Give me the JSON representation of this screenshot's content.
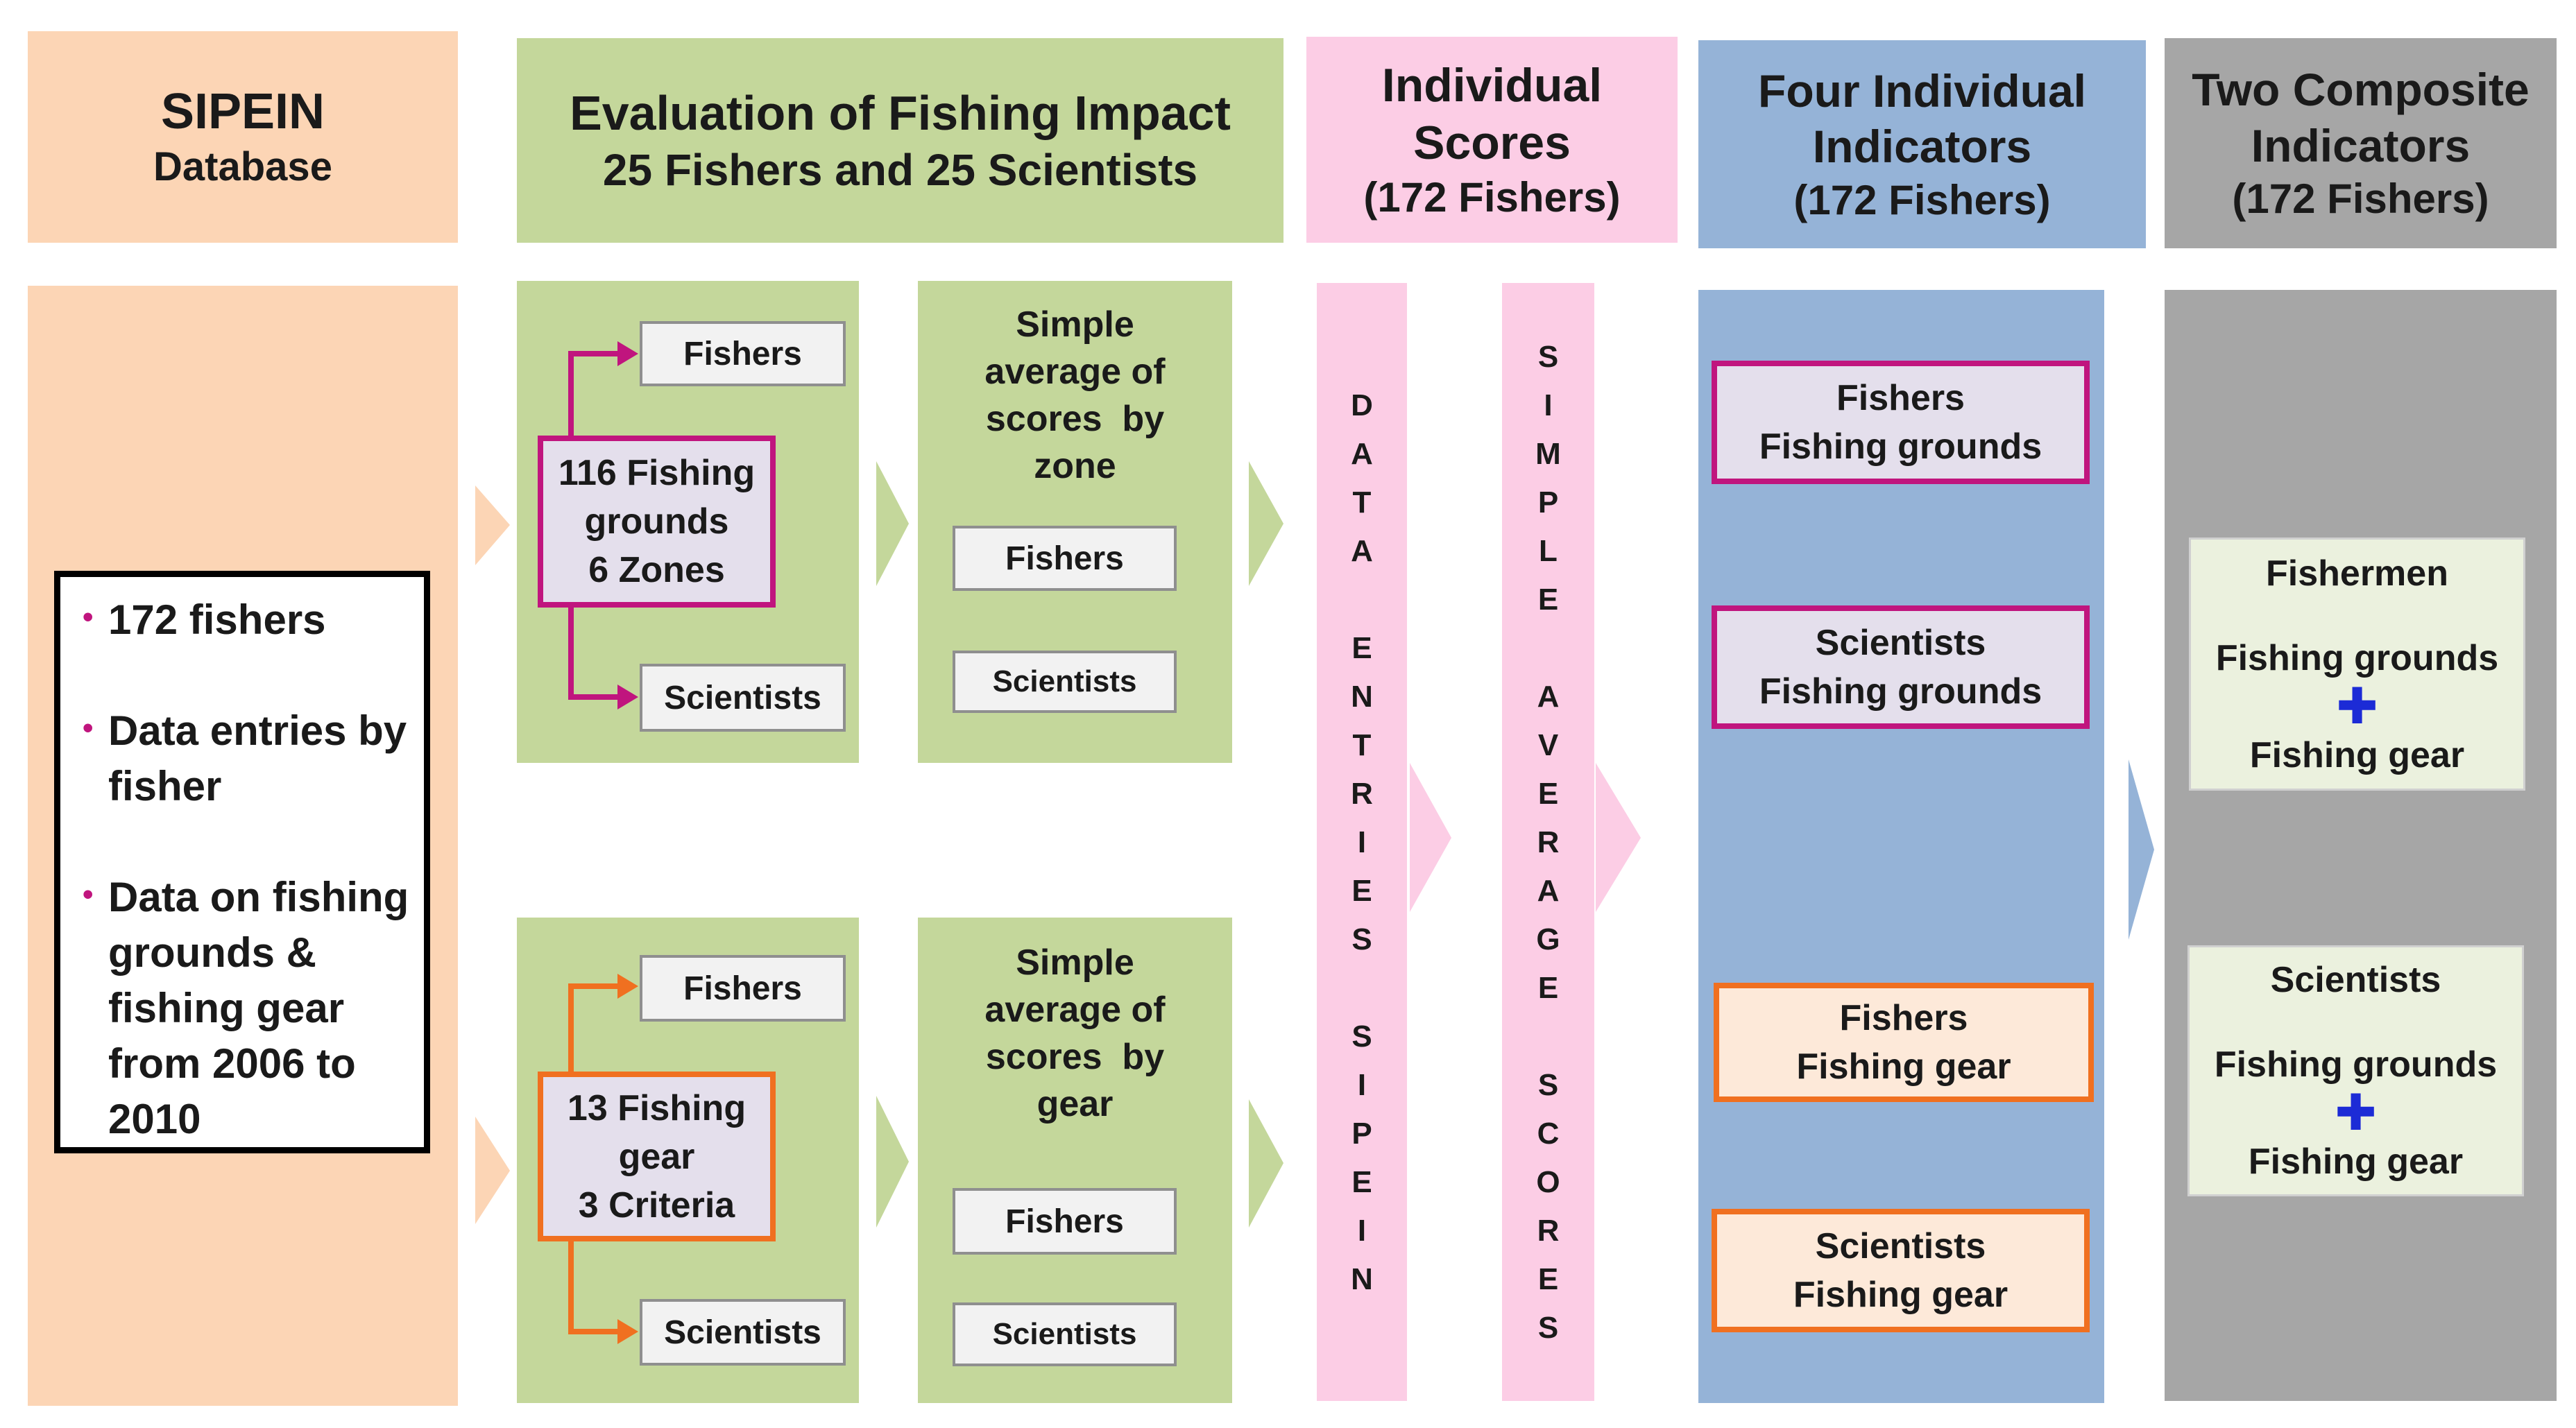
{
  "headers": {
    "sipein_title": "SIPEIN",
    "sipein_sub": "Database",
    "evaluation_line1": "Evaluation of Fishing Impact",
    "evaluation_line2": "25 Fishers and 25 Scientists",
    "individual_line1": "Individual",
    "individual_line2": "Scores",
    "individual_line3": "(172 Fishers)",
    "four_line1": "Four Individual",
    "four_line2": "Indicators",
    "four_line3": "(172 Fishers)",
    "two_line1": "Two Composite",
    "two_line2": "Indicators",
    "two_line3": "(172 Fishers)"
  },
  "database": {
    "bullets": [
      "172 fishers",
      "Data entries by fisher",
      "Data on fishing grounds & fishing gear from 2006 to 2010"
    ]
  },
  "top_branch": {
    "center_line1": "116 Fishing",
    "center_line2": "grounds",
    "center_line3": "6 Zones",
    "fishers": "Fishers",
    "scientists": "Scientists",
    "avg_line1": "Simple",
    "avg_line2": "average of",
    "avg_line3": "scores  by",
    "avg_line4": "zone",
    "avg_fishers": "Fishers",
    "avg_scientists": "Scientists"
  },
  "bottom_branch": {
    "center_line1": "13 Fishing",
    "center_line2": "gear",
    "center_line3": "3 Criteria",
    "fishers": "Fishers",
    "scientists": "Scientists",
    "avg_line1": "Simple",
    "avg_line2": "average of",
    "avg_line3": "scores  by",
    "avg_line4": "gear",
    "avg_fishers": "Fishers",
    "avg_scientists": "Scientists"
  },
  "vertical": {
    "data_entries": "DATA ENTRIES SIPEIN",
    "simple_average": "SIMPLE AVERAGE SCORES"
  },
  "indicators": [
    {
      "line1": "Fishers",
      "line2": "Fishing grounds"
    },
    {
      "line1": "Scientists",
      "line2": "Fishing grounds"
    },
    {
      "line1": "Fishers",
      "line2": "Fishing gear"
    },
    {
      "line1": "Scientists",
      "line2": "Fishing gear"
    }
  ],
  "composite": [
    {
      "who": "Fishermen",
      "a": "Fishing grounds",
      "plus": "✚",
      "b": "Fishing gear"
    },
    {
      "who": "Scientists",
      "a": "Fishing grounds",
      "plus": "✚",
      "b": "Fishing gear"
    }
  ],
  "colors": {
    "peach": "#fcd5b5",
    "green": "#c4d79b",
    "pink": "#fccde5",
    "blue": "#95b3d7",
    "gray": "#a6a6a6",
    "magenta": "#c0157e",
    "orange": "#f07020"
  }
}
